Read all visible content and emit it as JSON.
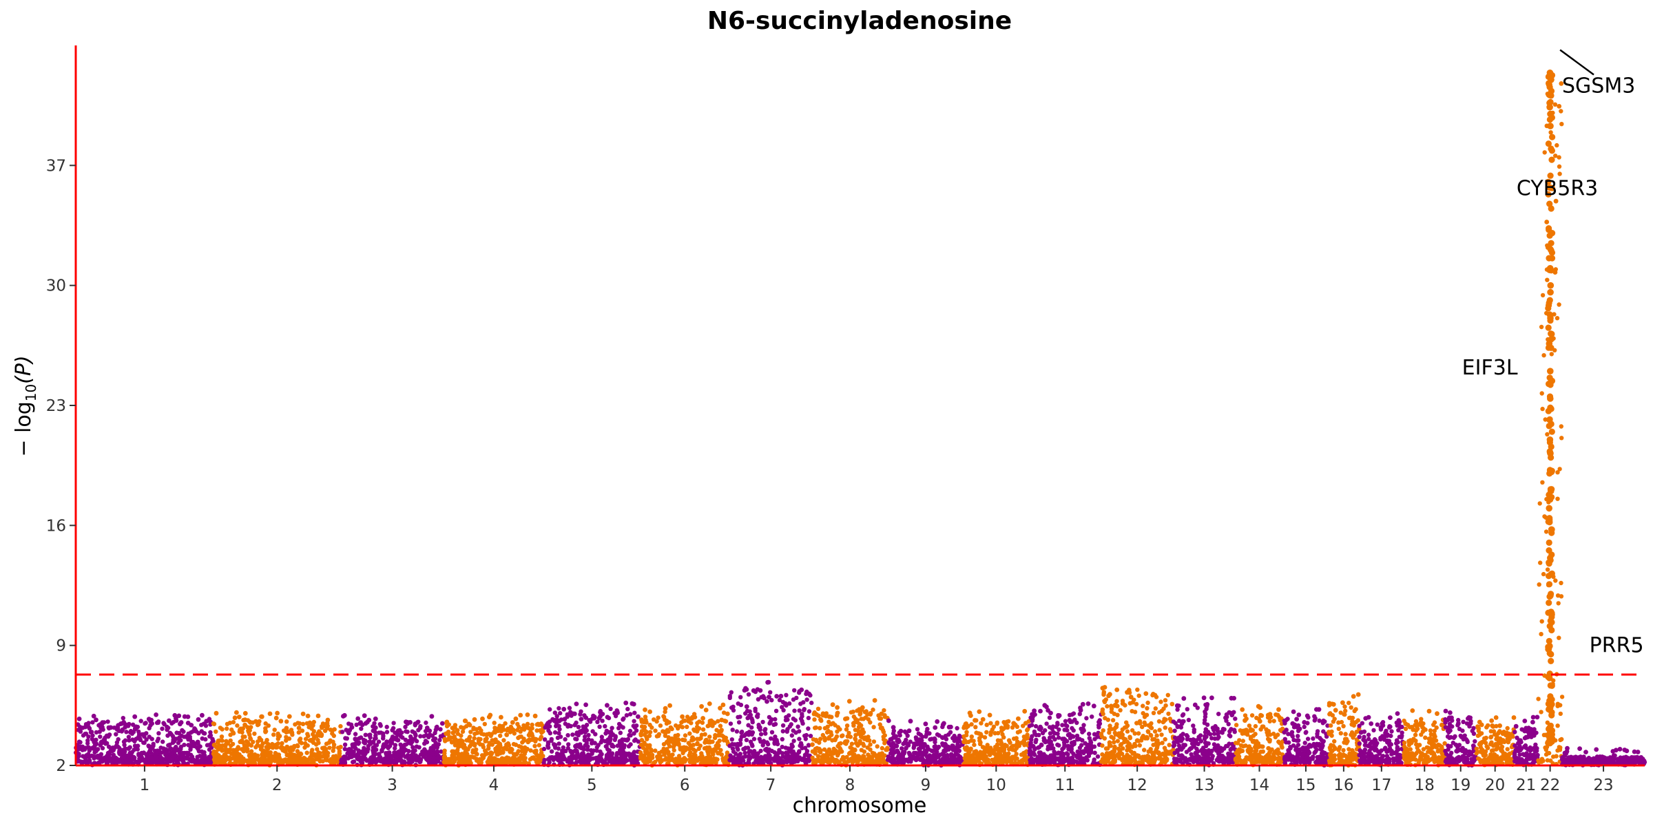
{
  "chart_data": {
    "type": "scatter",
    "subtype": "manhattan",
    "title": "N6-succinyladenosine",
    "xlabel": "chromosome",
    "ylabel_prefix": "− log",
    "ylabel_sub": "10",
    "ylabel_var": "(P)",
    "ylim": [
      2,
      44
    ],
    "yticks": [
      "2",
      "9",
      "16",
      "23",
      "30",
      "37"
    ],
    "yticks_values": [
      2,
      9,
      16,
      23,
      30,
      37
    ],
    "significance_threshold": 7.3,
    "colors": {
      "odd": "#8B008B",
      "even": "#EE7600",
      "axis": "#FF0000",
      "threshold": "#FF0000"
    },
    "grid": false,
    "legend": "none",
    "chromosomes": [
      {
        "label": "1",
        "start": 0,
        "end": 4.0,
        "peak": 5.2
      },
      {
        "label": "2",
        "start": 4.0,
        "end": 7.7,
        "peak": 5.1
      },
      {
        "label": "3",
        "start": 7.7,
        "end": 10.7,
        "peak": 5.0
      },
      {
        "label": "4",
        "start": 10.7,
        "end": 13.6,
        "peak": 5.0
      },
      {
        "label": "5",
        "start": 13.6,
        "end": 16.4,
        "peak": 5.8
      },
      {
        "label": "6",
        "start": 16.4,
        "end": 19.0,
        "peak": 5.6
      },
      {
        "label": "7",
        "start": 19.0,
        "end": 21.4,
        "peak": 6.9
      },
      {
        "label": "8",
        "start": 21.4,
        "end": 23.6,
        "peak": 5.8
      },
      {
        "label": "9",
        "start": 23.6,
        "end": 25.8,
        "peak": 4.7
      },
      {
        "label": "10",
        "start": 25.8,
        "end": 27.7,
        "peak": 5.2
      },
      {
        "label": "11",
        "start": 27.7,
        "end": 29.8,
        "peak": 5.6
      },
      {
        "label": "12",
        "start": 29.8,
        "end": 31.9,
        "peak": 6.9
      },
      {
        "label": "13",
        "start": 31.9,
        "end": 33.7,
        "peak": 6.0
      },
      {
        "label": "14",
        "start": 33.7,
        "end": 35.1,
        "peak": 5.6
      },
      {
        "label": "15",
        "start": 35.1,
        "end": 36.4,
        "peak": 5.3
      },
      {
        "label": "16",
        "start": 36.4,
        "end": 37.3,
        "peak": 6.2
      },
      {
        "label": "17",
        "start": 37.3,
        "end": 38.6,
        "peak": 5.1
      },
      {
        "label": "18",
        "start": 38.6,
        "end": 39.8,
        "peak": 5.2
      },
      {
        "label": "19",
        "start": 39.8,
        "end": 40.7,
        "peak": 5.4
      },
      {
        "label": "20",
        "start": 40.7,
        "end": 41.8,
        "peak": 5.0
      },
      {
        "label": "21",
        "start": 41.8,
        "end": 42.5,
        "peak": 4.9
      },
      {
        "label": "22",
        "start": 42.5,
        "end": 43.2,
        "peak": 42.4
      },
      {
        "label": "23",
        "start": 43.2,
        "end": 45.6,
        "peak": 3.0
      }
    ],
    "xlim": [
      0,
      45.6
    ],
    "annotations": [
      {
        "label": "SGSM3",
        "x": 43.02,
        "y": 43.9,
        "align": "right"
      },
      {
        "label": "CYB5R3",
        "x": 43.06,
        "y": 35.7,
        "align": "left"
      },
      {
        "label": "EIF3L",
        "x": 42.94,
        "y": 25.2,
        "align": "left"
      },
      {
        "label": "PRR5",
        "x": 42.98,
        "y": 9.0,
        "align": "right"
      }
    ]
  }
}
